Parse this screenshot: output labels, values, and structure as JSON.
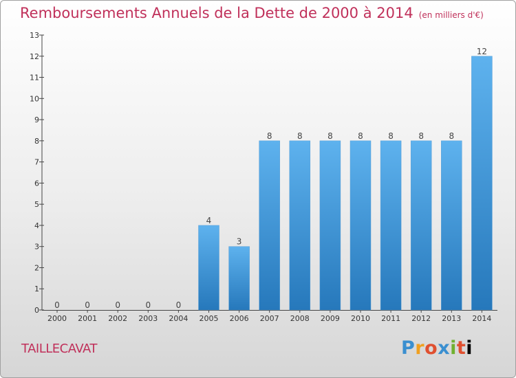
{
  "header": {
    "title": "Remboursements Annuels de la Dette de 2000 à 2014",
    "unit": "(en milliers d'€)"
  },
  "commune": "TAILLECAVAT",
  "logo": {
    "letters": [
      "P",
      "r",
      "o",
      "x",
      "i",
      "t",
      "i"
    ]
  },
  "colors": {
    "title": "#c0305a",
    "bar_top": "#5aaeea",
    "bar_bottom": "#2a7bbd",
    "axis": "#444444"
  },
  "chart_data": {
    "type": "bar",
    "categories": [
      "2000",
      "2001",
      "2002",
      "2003",
      "2004",
      "2005",
      "2006",
      "2007",
      "2008",
      "2009",
      "2010",
      "2011",
      "2012",
      "2013",
      "2014"
    ],
    "values": [
      0,
      0,
      0,
      0,
      0,
      4,
      3,
      8,
      8,
      8,
      8,
      8,
      8,
      8,
      12
    ],
    "data_labels": [
      "0",
      "0",
      "0",
      "0",
      "0",
      "4",
      "3",
      "8",
      "8",
      "8",
      "8",
      "8",
      "8",
      "8",
      "12"
    ],
    "title": "Remboursements Annuels de la Dette de 2000 à 2014",
    "xlabel": "",
    "ylabel": "",
    "ylim": [
      0,
      13
    ],
    "y_ticks": [
      "0",
      "1",
      "2",
      "3",
      "4",
      "5",
      "6",
      "7",
      "8",
      "9",
      "10",
      "11",
      "12",
      "13"
    ],
    "grid": false,
    "legend": "none"
  }
}
